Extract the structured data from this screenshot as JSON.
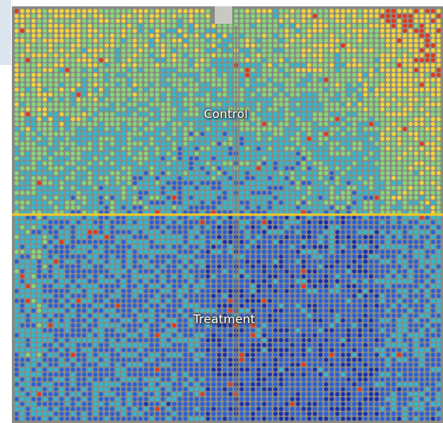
{
  "zones": {
    "control_label": "Control",
    "treatment_label": "Treatment"
  },
  "legend_colors": {
    "high": "#e03a1e",
    "mid_high": "#f2d43a",
    "mid": "#86d67a",
    "mid_low": "#2fb8d0",
    "low": "#2a60d8",
    "very_low": "#1830b0"
  },
  "divider_color": "#f2c62a",
  "field_background": "#8a8a84",
  "icons": [
    "field-map",
    "divider-line"
  ]
}
